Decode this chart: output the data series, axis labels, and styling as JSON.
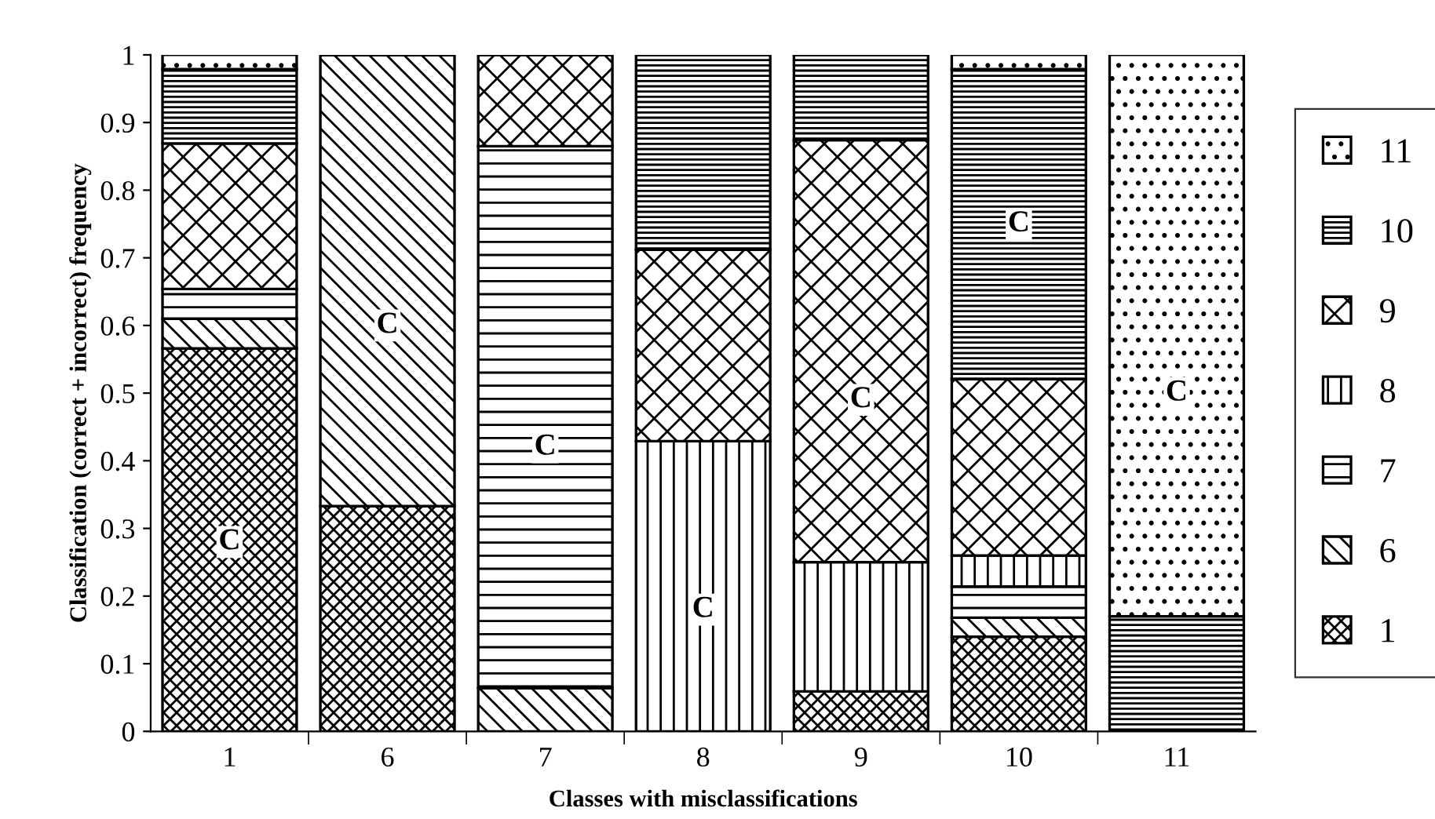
{
  "chart_data": {
    "type": "bar",
    "stacked": true,
    "xlabel": "Classes with misclassifications",
    "ylabel": "Classification (correct + incorrect) frequency",
    "categories": [
      "1",
      "6",
      "7",
      "8",
      "9",
      "10",
      "11"
    ],
    "series": [
      {
        "name": "1",
        "color": "#000000",
        "values": [
          0.566,
          0.333,
          0,
          0,
          0.059,
          0.14,
          0
        ]
      },
      {
        "name": "6",
        "color": "#000000",
        "values": [
          0.044,
          0.667,
          0.064,
          0,
          0,
          0.028,
          0
        ]
      },
      {
        "name": "7",
        "color": "#000000",
        "values": [
          0.044,
          0,
          0.801,
          0,
          0,
          0.046,
          0
        ]
      },
      {
        "name": "8",
        "color": "#000000",
        "values": [
          0,
          0,
          0,
          0.429,
          0.191,
          0.046,
          0
        ]
      },
      {
        "name": "9",
        "color": "#000000",
        "values": [
          0.215,
          0,
          0.135,
          0.283,
          0.624,
          0.261,
          0
        ]
      },
      {
        "name": "10",
        "color": "#000000",
        "values": [
          0.11,
          0,
          0,
          0.288,
          0.126,
          0.458,
          0.17
        ]
      },
      {
        "name": "11",
        "color": "#000000",
        "values": [
          0.021,
          0,
          0,
          0,
          0,
          0.021,
          0.83
        ]
      }
    ],
    "annotations": [
      {
        "text": "C",
        "x": "1",
        "y": 0.28
      },
      {
        "text": "C",
        "x": "6",
        "y": 0.6
      },
      {
        "text": "C",
        "x": "7",
        "y": 0.42
      },
      {
        "text": "C",
        "x": "8",
        "y": 0.18
      },
      {
        "text": "C",
        "x": "9",
        "y": 0.49
      },
      {
        "text": "C",
        "x": "10",
        "y": 0.75
      },
      {
        "text": "C",
        "x": "11",
        "y": 0.5
      }
    ],
    "ylim": [
      0,
      1
    ],
    "yticks": [
      0,
      0.1,
      0.2,
      0.3,
      0.4,
      0.5,
      0.6,
      0.7,
      0.8,
      0.9,
      1
    ],
    "legend": "right"
  }
}
